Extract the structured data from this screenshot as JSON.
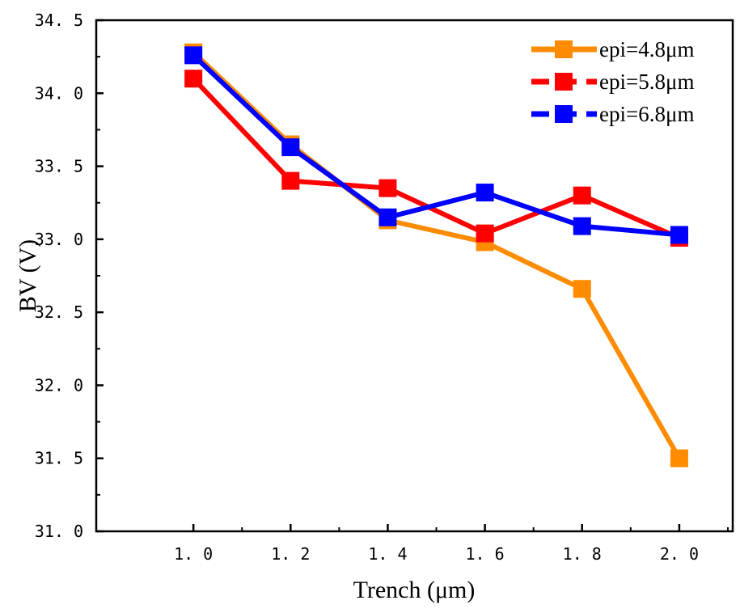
{
  "chart_data": {
    "type": "line",
    "title": "",
    "xlabel": "Trench  (μm)",
    "ylabel": "BV (V)",
    "xlim": [
      0.8,
      2.11
    ],
    "ylim": [
      31.0,
      34.5
    ],
    "x_ticks": [
      1.0,
      1.2,
      1.4,
      1.6,
      1.8,
      2.0
    ],
    "x_tick_labels": [
      "1. 0",
      "1. 2",
      "1. 4",
      "1. 6",
      "1. 8",
      "2. 0"
    ],
    "y_ticks": [
      31.0,
      31.5,
      32.0,
      32.5,
      33.0,
      33.5,
      34.0,
      34.5
    ],
    "y_tick_labels": [
      "31. 0",
      "31. 5",
      "32. 0",
      "32. 5",
      "33. 0",
      "33. 5",
      "34. 0",
      "34. 5"
    ],
    "grid": false,
    "legend_position": "top-right",
    "x": [
      1.0,
      1.2,
      1.4,
      1.6,
      1.8,
      2.0
    ],
    "series": [
      {
        "name": "epi=4.8μm",
        "color": "#ff8c00",
        "dash": false,
        "values": [
          34.28,
          33.65,
          33.13,
          32.98,
          32.66,
          31.5
        ]
      },
      {
        "name": "epi=5.8μm",
        "color": "#ff0000",
        "dash": true,
        "values": [
          34.1,
          33.4,
          33.35,
          33.04,
          33.3,
          33.01
        ]
      },
      {
        "name": "epi=6.8μm",
        "color": "#0000ff",
        "dash": true,
        "values": [
          34.26,
          33.63,
          33.15,
          33.32,
          33.09,
          33.03
        ]
      }
    ]
  }
}
